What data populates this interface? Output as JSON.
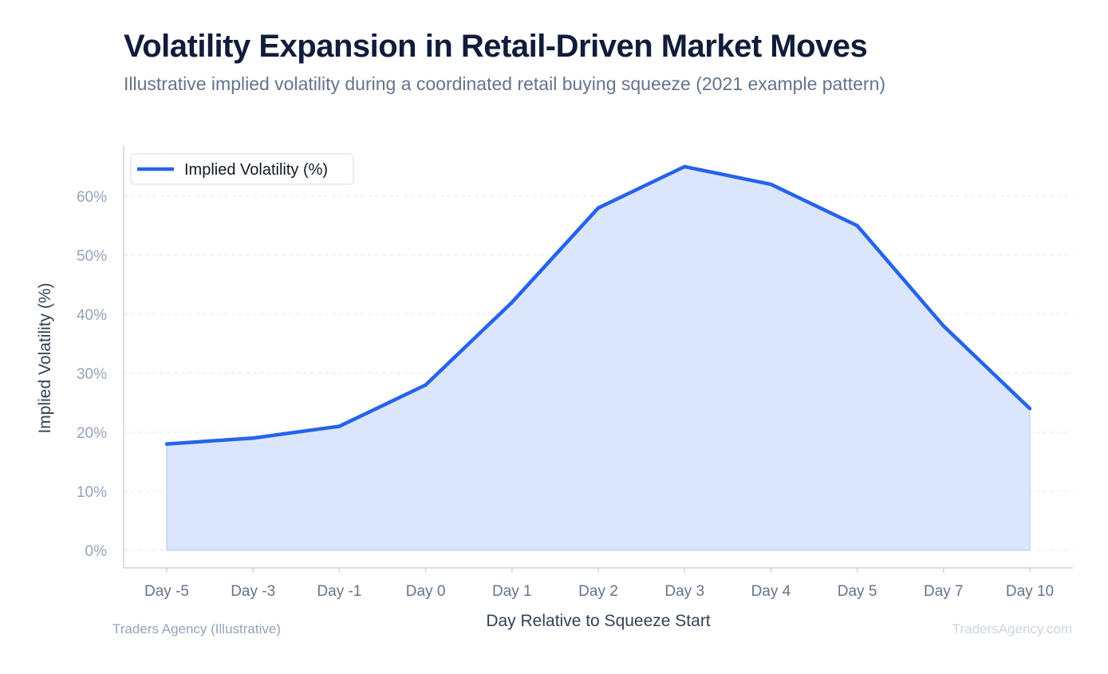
{
  "header": {
    "title": "Volatility Expansion in Retail-Driven Market Moves",
    "subtitle": "Illustrative implied volatility during a coordinated retail buying squeeze (2021 example pattern)"
  },
  "footer": {
    "source": "Traders Agency (Illustrative)",
    "watermark": "TradersAgency.com"
  },
  "chart_data": {
    "type": "area",
    "title": "Volatility Expansion in Retail-Driven Market Moves",
    "subtitle": "Illustrative implied volatility during a coordinated retail buying squeeze (2021 example pattern)",
    "xlabel": "Day Relative to Squeeze Start",
    "ylabel": "Implied Volatility (%)",
    "categories": [
      "Day -5",
      "Day -3",
      "Day -1",
      "Day 0",
      "Day 1",
      "Day 2",
      "Day 3",
      "Day 4",
      "Day 5",
      "Day 7",
      "Day 10"
    ],
    "series": [
      {
        "name": "Implied Volatility (%)",
        "values": [
          18,
          19,
          21,
          28,
          42,
          58,
          65,
          62,
          55,
          38,
          24
        ],
        "color": "#2563eb",
        "fill": "#dbe6fc"
      }
    ],
    "ylim": [
      -3,
      68.5
    ],
    "yticks": [
      0,
      10,
      20,
      30,
      40,
      50,
      60
    ],
    "ytick_labels": [
      "0%",
      "10%",
      "20%",
      "30%",
      "40%",
      "50%",
      "60%"
    ],
    "grid": true,
    "legend": "top-left",
    "colors": {
      "axis": "#cbd5e1",
      "grid": "#e5e7eb",
      "tick_label": "#94a3b8",
      "x_tick_label": "#64748b",
      "axis_title": "#334155"
    }
  }
}
